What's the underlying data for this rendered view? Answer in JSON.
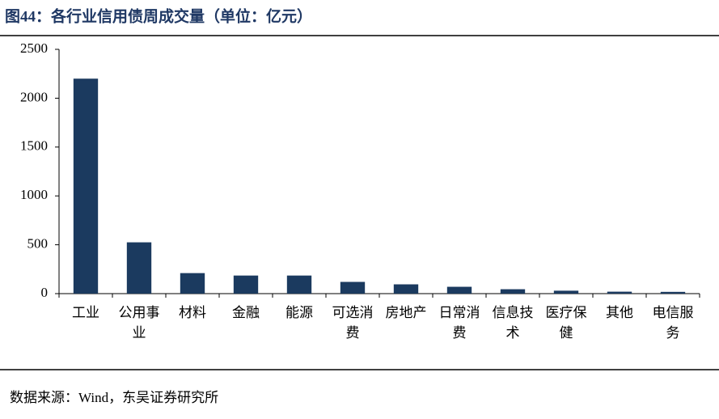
{
  "chart_data": {
    "type": "bar",
    "title": "图44：各行业信用债周成交量（单位：亿元）",
    "categories": [
      "工业",
      "公用事业",
      "材料",
      "金融",
      "能源",
      "可选消费",
      "房地产",
      "日常消费",
      "信息技术",
      "医疗保健",
      "其他",
      "电信服务"
    ],
    "values": [
      2200,
      525,
      210,
      185,
      185,
      120,
      95,
      70,
      45,
      30,
      20,
      18
    ],
    "color": "#1b3a5f",
    "ylim": [
      0,
      2500
    ],
    "yticks": [
      0,
      500,
      1000,
      1500,
      2000,
      2500
    ],
    "grid": false,
    "source": "数据来源：Wind，东吴证券研究所"
  }
}
